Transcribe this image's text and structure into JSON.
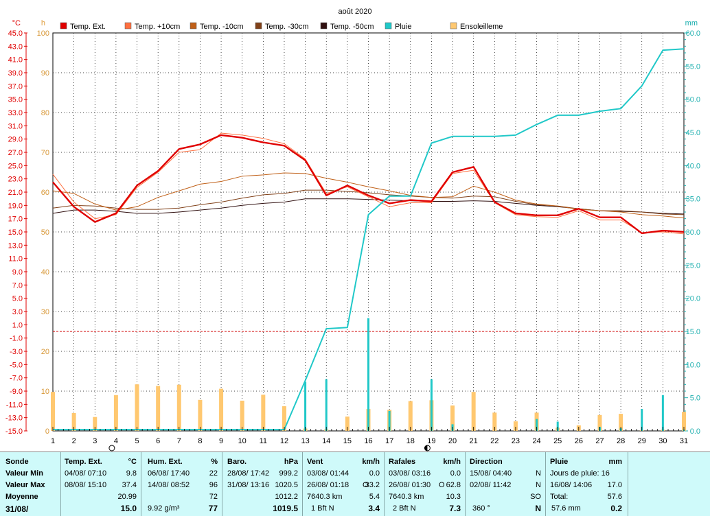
{
  "chart_data": {
    "type": "line",
    "title": "août 2020",
    "left_axis_unit": "°C",
    "hours_axis_unit": "h",
    "right_axis_unit": "mm",
    "x_days": [
      1,
      2,
      3,
      4,
      5,
      6,
      7,
      8,
      9,
      10,
      11,
      12,
      13,
      14,
      15,
      16,
      17,
      18,
      19,
      20,
      21,
      22,
      23,
      24,
      25,
      26,
      27,
      28,
      29,
      30,
      31
    ],
    "temp_ticks": [
      "45.0",
      "43.0",
      "41.0",
      "39.0",
      "37.0",
      "35.0",
      "33.0",
      "31.0",
      "29.0",
      "27.0",
      "25.0",
      "23.0",
      "21.0",
      "19.0",
      "17.0",
      "15.0",
      "13.0",
      "11.0",
      "9.0",
      "7.0",
      "5.0",
      "3.0",
      "1.0",
      "-1.0",
      "-3.0",
      "-5.0",
      "-7.0",
      "-9.0",
      "-11.0",
      "-13.0",
      "-15.0"
    ],
    "hours_ticks": [
      "100",
      "90",
      "80",
      "70",
      "60",
      "50",
      "40",
      "30",
      "20",
      "10",
      "0"
    ],
    "rain_ticks": [
      "60.0",
      "55.0",
      "50.0",
      "45.0",
      "40.0",
      "35.0",
      "30.0",
      "25.0",
      "20.0",
      "15.0",
      "10.0",
      "5.0",
      "0.0"
    ],
    "ylim_temp": [
      -15,
      45
    ],
    "ylim_hours": [
      0,
      100
    ],
    "ylim_rain": [
      0,
      60
    ],
    "frost_line": 0,
    "series": [
      {
        "name": "Temp. Ext.",
        "color": "#e00000",
        "axis": "temp",
        "width": 2.4,
        "points": [
          [
            1,
            22.5
          ],
          [
            2,
            18.8
          ],
          [
            3,
            16.5
          ],
          [
            4,
            17.8
          ],
          [
            5,
            22.0
          ],
          [
            6,
            24.2
          ],
          [
            7,
            27.5
          ],
          [
            8,
            28.2
          ],
          [
            9,
            29.6
          ],
          [
            10,
            29.2
          ],
          [
            11,
            28.5
          ],
          [
            12,
            28.0
          ],
          [
            13,
            25.8
          ],
          [
            14,
            20.5
          ],
          [
            15,
            22.0
          ],
          [
            16,
            20.5
          ],
          [
            17,
            19.3
          ],
          [
            18,
            19.8
          ],
          [
            19,
            19.6
          ],
          [
            20,
            24.0
          ],
          [
            21,
            24.8
          ],
          [
            22,
            19.5
          ],
          [
            23,
            17.8
          ],
          [
            24,
            17.5
          ],
          [
            25,
            17.5
          ],
          [
            26,
            18.5
          ],
          [
            27,
            17.2
          ],
          [
            28,
            17.2
          ],
          [
            29,
            14.8
          ],
          [
            30,
            15.2
          ],
          [
            31,
            15.0
          ]
        ]
      },
      {
        "name": "Temp. +10cm",
        "color": "#ff7040",
        "axis": "temp",
        "width": 1,
        "points": [
          [
            1,
            23.7
          ],
          [
            2,
            19.5
          ],
          [
            3,
            17.0
          ],
          [
            4,
            17.6
          ],
          [
            5,
            21.7
          ],
          [
            6,
            24.0
          ],
          [
            7,
            27.0
          ],
          [
            8,
            27.4
          ],
          [
            9,
            29.9
          ],
          [
            10,
            29.6
          ],
          [
            11,
            29.1
          ],
          [
            12,
            28.3
          ],
          [
            13,
            26.0
          ],
          [
            14,
            20.8
          ],
          [
            15,
            21.8
          ],
          [
            16,
            20.3
          ],
          [
            17,
            18.8
          ],
          [
            18,
            19.4
          ],
          [
            19,
            19.4
          ],
          [
            20,
            23.8
          ],
          [
            21,
            24.3
          ],
          [
            22,
            19.4
          ],
          [
            23,
            17.6
          ],
          [
            24,
            17.3
          ],
          [
            25,
            17.2
          ],
          [
            26,
            18.2
          ],
          [
            27,
            16.8
          ],
          [
            28,
            16.8
          ],
          [
            29,
            14.9
          ],
          [
            30,
            15.0
          ],
          [
            31,
            14.7
          ]
        ]
      },
      {
        "name": "Temp. -10cm",
        "color": "#c06018",
        "axis": "temp",
        "width": 1,
        "points": [
          [
            1,
            21.2
          ],
          [
            2,
            20.8
          ],
          [
            3,
            19.2
          ],
          [
            4,
            18.3
          ],
          [
            5,
            18.8
          ],
          [
            6,
            20.2
          ],
          [
            7,
            21.2
          ],
          [
            8,
            22.2
          ],
          [
            9,
            22.6
          ],
          [
            10,
            23.4
          ],
          [
            11,
            23.6
          ],
          [
            12,
            23.9
          ],
          [
            13,
            23.8
          ],
          [
            14,
            23.1
          ],
          [
            15,
            22.5
          ],
          [
            16,
            21.8
          ],
          [
            17,
            21.2
          ],
          [
            18,
            20.5
          ],
          [
            19,
            20.2
          ],
          [
            20,
            20.3
          ],
          [
            21,
            21.9
          ],
          [
            22,
            21.0
          ],
          [
            23,
            19.8
          ],
          [
            24,
            19.2
          ],
          [
            25,
            18.9
          ],
          [
            26,
            18.4
          ],
          [
            27,
            18.2
          ],
          [
            28,
            18.0
          ],
          [
            29,
            17.6
          ],
          [
            30,
            17.4
          ],
          [
            31,
            17.1
          ]
        ]
      },
      {
        "name": "Temp. -30cm",
        "color": "#804018",
        "axis": "temp",
        "width": 1,
        "points": [
          [
            1,
            18.6
          ],
          [
            2,
            19.0
          ],
          [
            3,
            18.9
          ],
          [
            4,
            18.6
          ],
          [
            5,
            18.4
          ],
          [
            6,
            18.4
          ],
          [
            7,
            18.6
          ],
          [
            8,
            19.1
          ],
          [
            9,
            19.5
          ],
          [
            10,
            20.1
          ],
          [
            11,
            20.6
          ],
          [
            12,
            20.8
          ],
          [
            13,
            21.3
          ],
          [
            14,
            21.3
          ],
          [
            15,
            21.1
          ],
          [
            16,
            20.9
          ],
          [
            17,
            20.6
          ],
          [
            18,
            20.4
          ],
          [
            19,
            20.2
          ],
          [
            20,
            20.1
          ],
          [
            21,
            20.4
          ],
          [
            22,
            20.3
          ],
          [
            23,
            19.6
          ],
          [
            24,
            19.1
          ],
          [
            25,
            18.9
          ],
          [
            26,
            18.5
          ],
          [
            27,
            18.2
          ],
          [
            28,
            18.2
          ],
          [
            29,
            18.0
          ],
          [
            30,
            17.7
          ],
          [
            31,
            17.6
          ]
        ]
      },
      {
        "name": "Temp. -50cm",
        "color": "#301010",
        "axis": "temp",
        "width": 1,
        "points": [
          [
            1,
            17.8
          ],
          [
            2,
            18.3
          ],
          [
            3,
            18.3
          ],
          [
            4,
            18.1
          ],
          [
            5,
            17.8
          ],
          [
            6,
            17.8
          ],
          [
            7,
            18.0
          ],
          [
            8,
            18.3
          ],
          [
            9,
            18.6
          ],
          [
            10,
            19.0
          ],
          [
            11,
            19.3
          ],
          [
            12,
            19.5
          ],
          [
            13,
            20.0
          ],
          [
            14,
            20.0
          ],
          [
            15,
            20.0
          ],
          [
            16,
            19.9
          ],
          [
            17,
            19.8
          ],
          [
            18,
            19.7
          ],
          [
            19,
            19.6
          ],
          [
            20,
            19.6
          ],
          [
            21,
            19.7
          ],
          [
            22,
            19.6
          ],
          [
            23,
            19.3
          ],
          [
            24,
            19.0
          ],
          [
            25,
            18.8
          ],
          [
            26,
            18.5
          ],
          [
            27,
            18.2
          ],
          [
            28,
            18.1
          ],
          [
            29,
            18.0
          ],
          [
            30,
            17.8
          ],
          [
            31,
            17.7
          ]
        ]
      },
      {
        "name": "Pluie",
        "color": "#20c8c8",
        "axis": "rain",
        "width": 2,
        "points": [
          [
            1,
            0.2
          ],
          [
            2,
            0.2
          ],
          [
            3,
            0.2
          ],
          [
            4,
            0.2
          ],
          [
            5,
            0.2
          ],
          [
            6,
            0.2
          ],
          [
            7,
            0.2
          ],
          [
            8,
            0.2
          ],
          [
            9,
            0.2
          ],
          [
            10,
            0.2
          ],
          [
            11,
            0.2
          ],
          [
            12,
            0.2
          ],
          [
            13,
            7.6
          ],
          [
            14,
            15.4
          ],
          [
            15,
            15.6
          ],
          [
            16,
            32.6
          ],
          [
            17,
            35.4
          ],
          [
            18,
            35.4
          ],
          [
            19,
            43.4
          ],
          [
            20,
            44.4
          ],
          [
            21,
            44.4
          ],
          [
            22,
            44.4
          ],
          [
            23,
            44.6
          ],
          [
            24,
            46.2
          ],
          [
            25,
            47.6
          ],
          [
            26,
            47.6
          ],
          [
            27,
            48.2
          ],
          [
            28,
            48.6
          ],
          [
            29,
            52.0
          ],
          [
            30,
            57.4
          ],
          [
            31,
            57.6
          ]
        ]
      }
    ],
    "sunshine": {
      "name": "Ensoleilleme",
      "color": "#ffc870",
      "axis": "hours",
      "values": [
        [
          1,
          9.8
        ],
        [
          2,
          4.5
        ],
        [
          3,
          3.5
        ],
        [
          4,
          9.0
        ],
        [
          5,
          11.7
        ],
        [
          6,
          11.3
        ],
        [
          7,
          11.6
        ],
        [
          8,
          7.8
        ],
        [
          9,
          10.6
        ],
        [
          10,
          7.6
        ],
        [
          11,
          9.1
        ],
        [
          12,
          6.2
        ],
        [
          13,
          0.6
        ],
        [
          14,
          0.4
        ],
        [
          15,
          3.6
        ],
        [
          16,
          5.5
        ],
        [
          17,
          5.3
        ],
        [
          18,
          7.5
        ],
        [
          19,
          7.7
        ],
        [
          20,
          6.4
        ],
        [
          21,
          9.8
        ],
        [
          22,
          4.6
        ],
        [
          23,
          2.4
        ],
        [
          24,
          4.6
        ],
        [
          25,
          0.8
        ],
        [
          26,
          1.4
        ],
        [
          27,
          4.0
        ],
        [
          28,
          4.3
        ],
        [
          29,
          0.2
        ],
        [
          30,
          0.3
        ],
        [
          31,
          4.8
        ]
      ]
    },
    "daily_rain": {
      "name": "Pluie",
      "color": "#20c8c8",
      "axis": "rain",
      "values": [
        [
          13,
          7.4
        ],
        [
          14,
          7.8
        ],
        [
          16,
          17.0
        ],
        [
          17,
          3.0
        ],
        [
          19,
          7.8
        ],
        [
          20,
          1.0
        ],
        [
          24,
          1.8
        ],
        [
          25,
          1.4
        ],
        [
          27,
          0.6
        ],
        [
          28,
          0.4
        ],
        [
          29,
          3.3
        ],
        [
          30,
          5.4
        ],
        [
          31,
          0.2
        ]
      ]
    },
    "moon_symbols": [
      {
        "day": 4,
        "phase": "new"
      },
      {
        "day": 19,
        "phase": "full"
      }
    ]
  },
  "legend": [
    {
      "label": "Temp. Ext.",
      "color": "#e00000"
    },
    {
      "label": "Temp. +10cm",
      "color": "#ff7040"
    },
    {
      "label": "Temp. -10cm",
      "color": "#c06018"
    },
    {
      "label": "Temp. -30cm",
      "color": "#804018"
    },
    {
      "label": "Temp. -50cm",
      "color": "#301010"
    },
    {
      "label": "Pluie",
      "color": "#20c8c8"
    },
    {
      "label": "Ensoleilleme",
      "color": "#ffc870"
    }
  ],
  "summary": {
    "sonde": {
      "title": "Sonde",
      "rows": [
        "Valeur Min",
        "Valeur Max",
        "Moyenne",
        "31/08/"
      ]
    },
    "temp": {
      "title": "Temp. Ext.",
      "unit": "°C",
      "min_date": "04/08/  07:10",
      "min": "9.8",
      "max_date": "08/08/  15:10",
      "max": "37.4",
      "avg": "20.99",
      "current": "15.0"
    },
    "hum": {
      "title": "Hum. Ext.",
      "unit": "%",
      "min_date": "06/08/  17:40",
      "min": "22",
      "max_date": "14/08/  08:52",
      "max": "96",
      "avg": "72",
      "current_extra": "9.92 g/m³",
      "current": "77"
    },
    "baro": {
      "title": "Baro.",
      "unit": "hPa",
      "min_date": "28/08/  17:42",
      "min": "999.2",
      "max_date": "31/08/  13:16",
      "max": "1020.5",
      "avg": "1012.2",
      "current": "1019.5"
    },
    "vent": {
      "title": "Vent",
      "unit": "km/h",
      "min_date": "03/08/  01:44",
      "min": "0.0",
      "max_date": "26/08/  01:18",
      "max_dir": "O",
      "max": "33.2",
      "dist": "7640.3 km",
      "avg": "5.4",
      "current_bft": "1 Bft N",
      "current": "3.4"
    },
    "rafales": {
      "title": "Rafales",
      "unit": "km/h",
      "min_date": "03/08/  03:16",
      "min": "0.0",
      "max_date": "26/08/  01:30",
      "max_dir": "O",
      "max": "62.8",
      "dist": "7640.3 km",
      "avg": "10.3",
      "current_bft": "2 Bft N",
      "current": "7.3"
    },
    "direction": {
      "title": "Direction",
      "min_date": "15/08/  04:40",
      "min": "N",
      "max_date": "02/08/  11:42",
      "max": "N",
      "avg": "SO",
      "current_deg": "360 °",
      "current": "N"
    },
    "pluie": {
      "title": "Pluie",
      "unit": "mm",
      "jours": "Jours de pluie: 16",
      "max_date": "16/08/  14:06",
      "max": "17.0",
      "total_label": "Total:",
      "total": "57.6",
      "current_extra": "57.6 mm",
      "current": "0.2"
    }
  }
}
